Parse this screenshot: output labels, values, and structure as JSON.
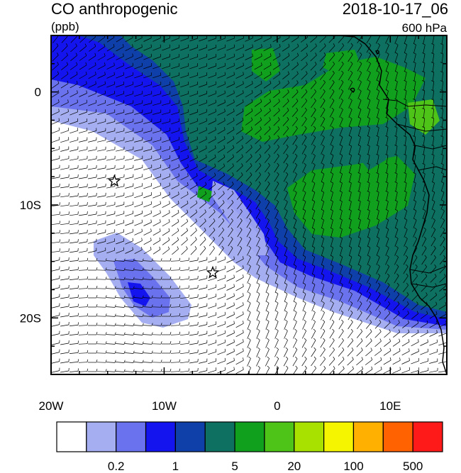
{
  "header": {
    "title": "CO anthropogenic",
    "units": "(ppb)",
    "datetime": "2018-10-17_06",
    "level": "600 hPa"
  },
  "map": {
    "lon_range": [
      -20,
      15
    ],
    "lat_range": [
      -25,
      5
    ],
    "lon_ticks": [
      {
        "value": -20,
        "label": "20W"
      },
      {
        "value": -10,
        "label": "10W"
      },
      {
        "value": 0,
        "label": "0"
      },
      {
        "value": 10,
        "label": "10E"
      }
    ],
    "lat_ticks": [
      {
        "value": 0,
        "label": "0"
      },
      {
        "value": -10,
        "label": "10S"
      },
      {
        "value": -20,
        "label": "20S"
      }
    ],
    "markers": [
      {
        "name": "star",
        "lon": -14.4,
        "lat": -7.9
      },
      {
        "name": "star",
        "lon": -5.7,
        "lat": -16.0
      }
    ]
  },
  "colorbar": {
    "colors": [
      "#ffffff",
      "#a5aef0",
      "#6a72ee",
      "#1414ee",
      "#0f3fa8",
      "#0d7060",
      "#11a01e",
      "#4ec418",
      "#a8e000",
      "#f5f500",
      "#ffb000",
      "#ff6200",
      "#ff1a1a"
    ],
    "labels": [
      "0.2",
      "1",
      "5",
      "20",
      "100",
      "500"
    ]
  }
}
